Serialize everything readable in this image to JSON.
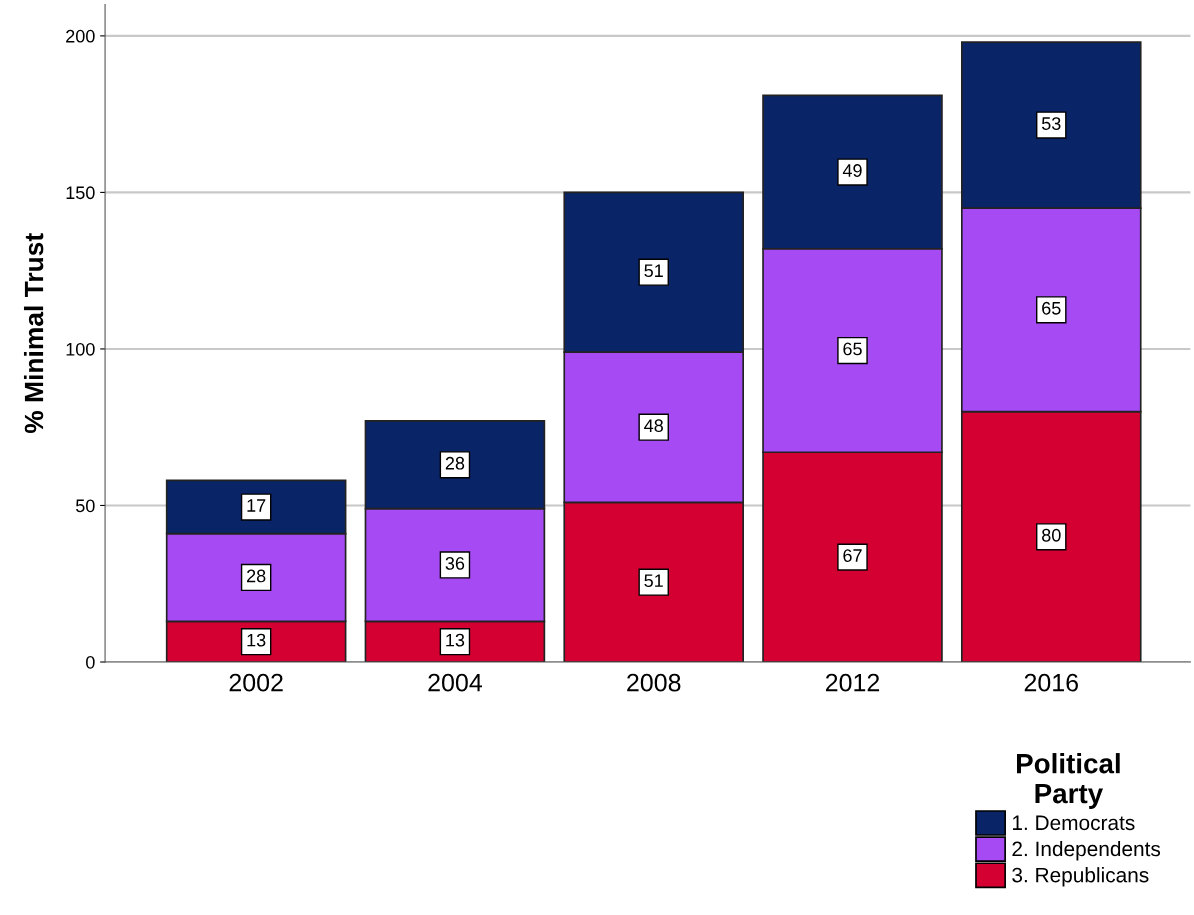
{
  "chart_data": {
    "type": "bar",
    "stacked": true,
    "ylabel": "% Minimal Trust",
    "legend_title": "Political Party",
    "categories": [
      "2002",
      "2004",
      "2008",
      "2012",
      "2016"
    ],
    "series": [
      {
        "name": "3. Republicans",
        "color": "#d50032",
        "values": [
          13,
          13,
          51,
          67,
          80
        ]
      },
      {
        "name": "2. Independents",
        "color": "#a64bf4",
        "values": [
          28,
          36,
          48,
          65,
          65
        ]
      },
      {
        "name": "1. Democrats",
        "color": "#0a2468",
        "values": [
          17,
          28,
          51,
          49,
          53
        ]
      }
    ],
    "ylim": [
      0,
      210
    ],
    "yticks": [
      0,
      50,
      100,
      150,
      200
    ],
    "grid": "y",
    "legend": "bottom right",
    "data_labels": true
  }
}
